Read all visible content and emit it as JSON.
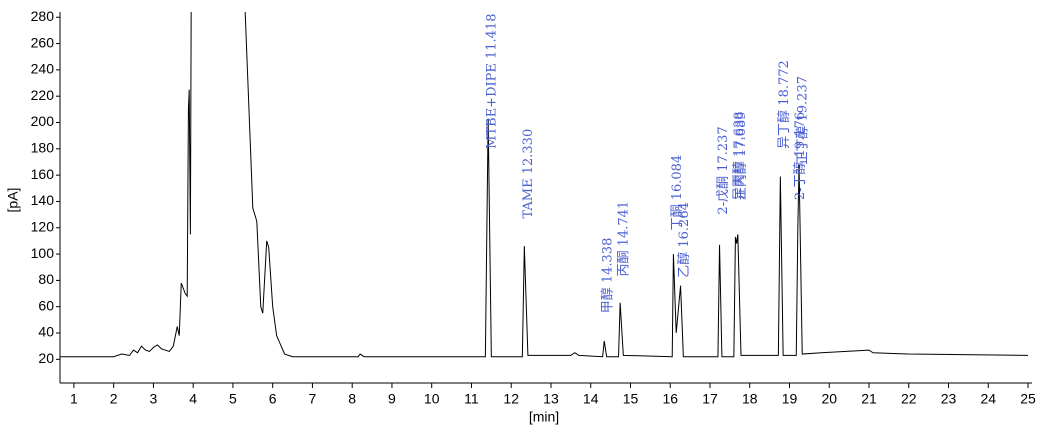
{
  "chart_data": {
    "type": "line",
    "xlabel": "[min]",
    "ylabel": "[pA]",
    "xlim": [
      0.65,
      25.1
    ],
    "ylim": [
      2,
      284
    ],
    "xticks": [
      1,
      2,
      3,
      4,
      5,
      6,
      7,
      8,
      9,
      10,
      11,
      12,
      13,
      14,
      15,
      16,
      17,
      18,
      19,
      20,
      21,
      22,
      23,
      24,
      25
    ],
    "yticks": [
      20,
      40,
      60,
      80,
      100,
      120,
      140,
      160,
      180,
      200,
      220,
      240,
      260,
      280
    ],
    "x": [
      0.65,
      2.0,
      2.2,
      2.4,
      2.5,
      2.6,
      2.7,
      2.8,
      2.9,
      3.0,
      3.1,
      3.2,
      3.4,
      3.5,
      3.6,
      3.65,
      3.7,
      3.8,
      3.85,
      3.88,
      3.9,
      3.93,
      3.95,
      4.0,
      5.3,
      5.5,
      5.6,
      5.7,
      5.75,
      5.85,
      5.9,
      6.0,
      6.1,
      6.3,
      6.5,
      8.15,
      8.2,
      8.3,
      11.35,
      11.42,
      11.5,
      12.28,
      12.33,
      12.42,
      13.5,
      13.6,
      13.7,
      14.3,
      14.34,
      14.4,
      14.7,
      14.74,
      14.82,
      16.05,
      16.08,
      16.15,
      16.26,
      16.33,
      17.2,
      17.24,
      17.3,
      17.6,
      17.64,
      17.67,
      17.7,
      17.78,
      18.72,
      18.77,
      18.84,
      19.17,
      19.21,
      19.24,
      19.32,
      19.8,
      21.0,
      21.1,
      22.0,
      25.0
    ],
    "series": [
      {
        "color": "#000000",
        "values": [
          22,
          22,
          24,
          23,
          27,
          25,
          30,
          27,
          26,
          29,
          31,
          28,
          26,
          30,
          45,
          38,
          78,
          70,
          68,
          210,
          225,
          115,
          290,
          290,
          290,
          135,
          125,
          60,
          55,
          110,
          105,
          60,
          38,
          24,
          22,
          22,
          24,
          22,
          22,
          203,
          22,
          22,
          106,
          23,
          23,
          25,
          23,
          22,
          34,
          22,
          22,
          63,
          23,
          22,
          100,
          40,
          76,
          22,
          22,
          107,
          22,
          22,
          113,
          108,
          115,
          23,
          23,
          159,
          23,
          23,
          120,
          168,
          24,
          25,
          27,
          25,
          24,
          23
        ]
      }
    ],
    "annotations": [
      {
        "text": "MTBE+DIPE 11.418",
        "x": 11.418,
        "y": 180
      },
      {
        "text": "TAME 12.330",
        "x": 12.33,
        "y": 127
      },
      {
        "text": "甲醇 14.338",
        "x": 14.338,
        "y": 55
      },
      {
        "text": "丙酮 14.741",
        "x": 14.741,
        "y": 83
      },
      {
        "text": "丁酮 16.084",
        "x": 16.084,
        "y": 118
      },
      {
        "text": "乙醇 16.264",
        "x": 16.264,
        "y": 82
      },
      {
        "text": "2-戊酮 17.237",
        "x": 17.237,
        "y": 130
      },
      {
        "text": "异丙醇 17.638",
        "x": 17.638,
        "y": 141
      },
      {
        "text": "正丙醇 17.689",
        "x": 17.689,
        "y": 141
      },
      {
        "text": "异丁醇 18.772",
        "x": 18.772,
        "y": 180
      },
      {
        "text": "2-丁醇 19.176",
        "x": 19.176,
        "y": 141
      },
      {
        "text": "正丁醇 19.237",
        "x": 19.237,
        "y": 168
      }
    ],
    "annotation_color": "#4a5fd0"
  }
}
